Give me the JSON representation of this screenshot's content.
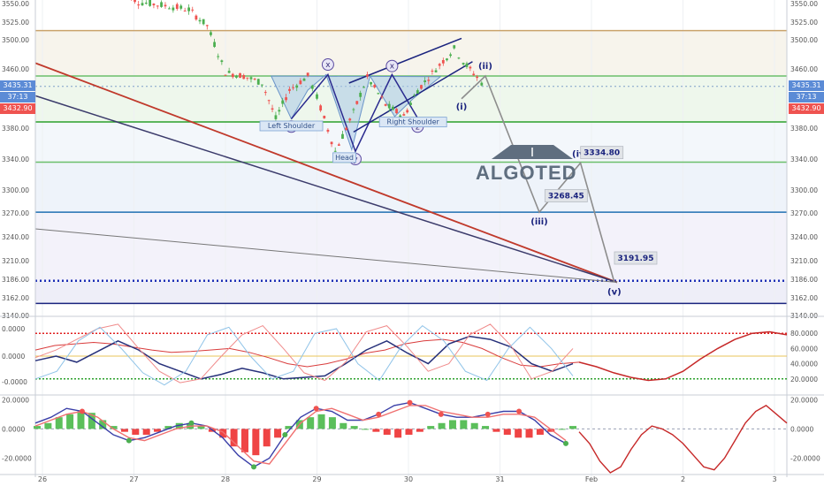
{
  "brand": {
    "name": "ALGOTED"
  },
  "price_tags": {
    "left_top": "3435.31",
    "left_mid": "37:13",
    "left_bottom": "3432.90",
    "right_top": "3435.31",
    "right_mid": "37:13",
    "right_bottom": "3432.90"
  },
  "colors": {
    "bull": "#4caf50",
    "bear": "#ef5350",
    "pattern_fill": "#a9c8e6",
    "wave_line": "#2b2b8f",
    "projection": "#8d8d8d",
    "red_trend": "#c0392b",
    "navy_trend": "#3b3b6b",
    "support_green": "#2ca02c",
    "level_blue": "#1f6fb2",
    "dotted_blue": "#1c2fb5"
  },
  "chart_data": [
    {
      "type": "line",
      "panel": "price",
      "x_tick_labels": [
        "26",
        "27",
        "28",
        "29",
        "30",
        "31",
        "Feb",
        "2",
        "3"
      ],
      "y_tick_labels": [
        "3550.00",
        "3525.00",
        "3500.00",
        "3460.00",
        "3420.00",
        "3380.00",
        "3340.00",
        "3300.00",
        "3270.00",
        "3240.00",
        "3210.00",
        "3186.00",
        "3162.00",
        "3140.00"
      ],
      "ylim": [
        3140,
        3555
      ],
      "horizontal_levels": [
        {
          "value": 3513,
          "color": "#c9a36b",
          "style": "solid"
        },
        {
          "value": 3450,
          "color": "#6bbf6b",
          "style": "solid"
        },
        {
          "value": 3435.31,
          "color": "#7fa0c8",
          "style": "dotted"
        },
        {
          "value": 3388,
          "color": "#2ca02c",
          "style": "solid"
        },
        {
          "value": 3336,
          "color": "#6bbf6b",
          "style": "solid"
        },
        {
          "value": 3271,
          "color": "#1f6fb2",
          "style": "solid"
        },
        {
          "value": 3184,
          "color": "#1c2fb5",
          "style": "dotted"
        },
        {
          "value": 3155,
          "color": "#1a237e",
          "style": "solid"
        }
      ],
      "pattern_labels": [
        "Left Shoulder",
        "Head",
        "Right Shoulder"
      ],
      "wave_labels": [
        "w",
        "x",
        "y",
        "x",
        "z"
      ],
      "projection_labels": [
        {
          "label": "(i)",
          "day": 30.58,
          "price": 3418
        },
        {
          "label": "(ii)",
          "day": 30.84,
          "price": 3450
        },
        {
          "label": "(iii)",
          "day": 31.43,
          "price": 3271
        },
        {
          "label": "(iv)",
          "day": 31.88,
          "price": 3335
        },
        {
          "label": "(v)",
          "day": 32.25,
          "price": 3182
        }
      ],
      "projection_values": [
        "3334.80",
        "3268.45",
        "3191.95"
      ],
      "series": [
        {
          "values": [
            {
              "day": 26.85,
              "price": 3570
            },
            {
              "day": 27.05,
              "price": 3552
            },
            {
              "day": 27.3,
              "price": 3548
            },
            {
              "day": 27.6,
              "price": 3542
            },
            {
              "day": 27.8,
              "price": 3520
            },
            {
              "day": 28.0,
              "price": 3455
            },
            {
              "day": 28.2,
              "price": 3450
            },
            {
              "day": 28.4,
              "price": 3440
            },
            {
              "day": 28.55,
              "price": 3392
            },
            {
              "day": 28.7,
              "price": 3430
            },
            {
              "day": 28.9,
              "price": 3450
            },
            {
              "day": 29.0,
              "price": 3420
            },
            {
              "day": 29.2,
              "price": 3350
            },
            {
              "day": 29.4,
              "price": 3400
            },
            {
              "day": 29.55,
              "price": 3448
            },
            {
              "day": 29.75,
              "price": 3410
            },
            {
              "day": 29.95,
              "price": 3395
            },
            {
              "day": 30.1,
              "price": 3430
            },
            {
              "day": 30.3,
              "price": 3460
            },
            {
              "day": 30.5,
              "price": 3488
            },
            {
              "day": 30.6,
              "price": 3470
            },
            {
              "day": 30.75,
              "price": 3448
            },
            {
              "day": 30.85,
              "price": 3433
            }
          ]
        }
      ]
    },
    {
      "type": "line",
      "panel": "oscillator-1",
      "y_tick_labels_left": [
        "0.0000",
        "0.0000",
        "-0.0000"
      ],
      "y_tick_labels_right": [
        "80.0000",
        "60.0000",
        "40.0000",
        "20.0000"
      ],
      "ylim": [
        0,
        100
      ],
      "guide_levels": [
        {
          "value": 80,
          "color": "#e02020"
        },
        {
          "value": 20,
          "color": "#2ca02c"
        }
      ],
      "series": [
        {
          "values": [
            58,
            64,
            66,
            68,
            66,
            62,
            58,
            55,
            56,
            58,
            60,
            55,
            48,
            40,
            36,
            40,
            46,
            54,
            58,
            66,
            70,
            72,
            68,
            60,
            48,
            38,
            36,
            40,
            42
          ]
        },
        {
          "values": [
            44,
            50,
            42,
            56,
            70,
            58,
            40,
            30,
            20,
            26,
            34,
            28,
            20,
            22,
            24,
            40,
            58,
            70,
            54,
            40,
            66,
            76,
            72,
            62,
            40,
            30,
            40
          ]
        },
        {
          "values": [
            48,
            58,
            72,
            86,
            92,
            60,
            30,
            15,
            20,
            50,
            78,
            90,
            60,
            28,
            18,
            42,
            82,
            90,
            62,
            30,
            40,
            78,
            92,
            64,
            20,
            30,
            60
          ]
        },
        {
          "values": [
            20,
            30,
            70,
            88,
            60,
            28,
            12,
            30,
            78,
            88,
            50,
            20,
            30,
            80,
            86,
            40,
            18,
            62,
            90,
            70,
            30,
            18,
            60,
            88,
            60,
            24
          ]
        },
        {
          "values": [
            42,
            36,
            28,
            22,
            18,
            20,
            30,
            46,
            60,
            72,
            80,
            82,
            78
          ]
        }
      ]
    },
    {
      "type": "bar",
      "panel": "oscillator-2",
      "y_tick_labels_left": [
        "20.0000",
        "0.0000",
        "-20.0000"
      ],
      "y_tick_labels_right": [
        "20.0000",
        "0.0000",
        "-20.0000"
      ],
      "ylim": [
        -30,
        22
      ],
      "histogram": [
        2,
        4,
        8,
        10,
        12,
        11,
        6,
        2,
        -2,
        -4,
        -4,
        -2,
        2,
        4,
        4,
        2,
        -2,
        -6,
        -12,
        -16,
        -18,
        -12,
        -6,
        2,
        6,
        8,
        10,
        8,
        4,
        2,
        0,
        -2,
        -4,
        -6,
        -4,
        -2,
        2,
        4,
        6,
        6,
        4,
        2,
        -2,
        -4,
        -6,
        -6,
        -4,
        -2,
        0,
        2
      ],
      "series": [
        {
          "values": [
            4,
            8,
            14,
            12,
            4,
            -4,
            -8,
            -6,
            -2,
            2,
            4,
            2,
            -6,
            -18,
            -26,
            -20,
            -4,
            8,
            14,
            12,
            6,
            6,
            10,
            16,
            18,
            14,
            10,
            8,
            8,
            10,
            12,
            12,
            6,
            -4,
            -10
          ]
        },
        {
          "values": [
            2,
            6,
            10,
            12,
            8,
            0,
            -6,
            -8,
            -4,
            0,
            2,
            2,
            -2,
            -12,
            -22,
            -24,
            -10,
            4,
            12,
            14,
            10,
            6,
            8,
            12,
            16,
            16,
            12,
            10,
            8,
            8,
            10,
            10,
            8,
            0,
            -8
          ]
        },
        {
          "values": [
            -2,
            -10,
            -22,
            -30,
            -26,
            -14,
            -4,
            2,
            0,
            -4,
            -10,
            -18,
            -26,
            -28,
            -20,
            -8,
            4,
            12,
            16,
            10,
            4
          ]
        }
      ],
      "markers": [
        {
          "kind": "peak",
          "color": "#ef5350"
        },
        {
          "kind": "trough",
          "color": "#4caf50"
        },
        {
          "kind": "trough",
          "color": "#4caf50"
        },
        {
          "kind": "trough",
          "color": "#4caf50"
        },
        {
          "kind": "trough",
          "color": "#4caf50"
        },
        {
          "kind": "peak",
          "color": "#ef5350"
        },
        {
          "kind": "peak",
          "color": "#ef5350"
        },
        {
          "kind": "peak",
          "color": "#ef5350"
        },
        {
          "kind": "peak",
          "color": "#ef5350"
        },
        {
          "kind": "peak",
          "color": "#ef5350"
        },
        {
          "kind": "peak",
          "color": "#ef5350"
        },
        {
          "kind": "trough",
          "color": "#4caf50"
        }
      ]
    }
  ]
}
